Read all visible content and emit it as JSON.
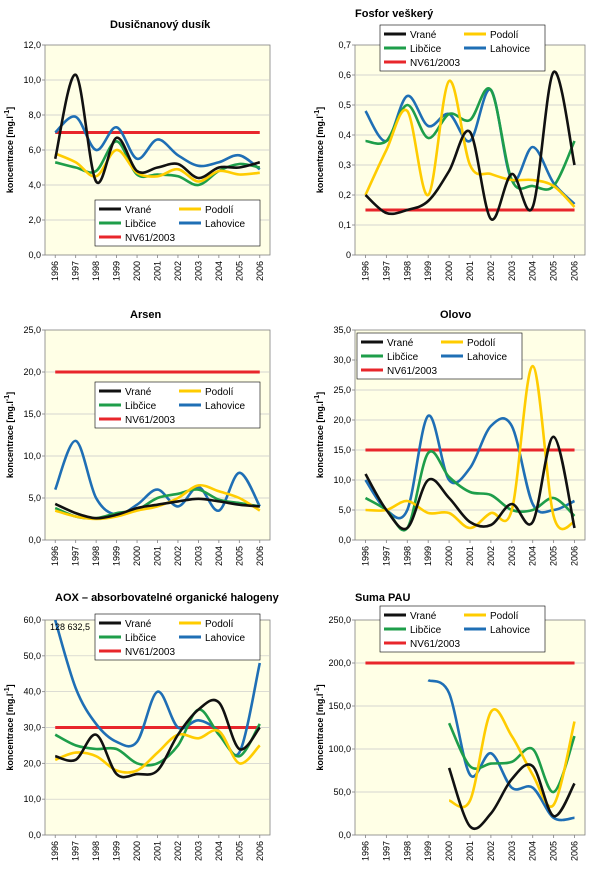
{
  "colors": {
    "Vrané": "#111111",
    "Podolí": "#FFCC00",
    "Libčice": "#1E9E4A",
    "Lahovice": "#1F6FB5",
    "NV61/2003": "#E8262B",
    "plot_background": "#FFFFE6",
    "grid": "#C8C8C8"
  },
  "chart_data": [
    {
      "type": "line",
      "title": "Dusičnanový dusík",
      "ylabel": "koncentrace [mg.l-1]",
      "ylim": [
        0,
        12
      ],
      "yticks": [
        "0,0",
        "2,0",
        "4,0",
        "6,0",
        "8,0",
        "10,0",
        "12,0"
      ],
      "x": [
        "1996",
        "1997",
        "1998",
        "1999",
        "2000",
        "2001",
        "2002",
        "2003",
        "2004",
        "2005",
        "2006"
      ],
      "grid": true,
      "legend": "bottom-center",
      "series": [
        {
          "name": "Vrané",
          "values": [
            5.5,
            10.3,
            4.2,
            6.7,
            4.8,
            5.0,
            5.2,
            4.4,
            5.0,
            5.0,
            5.3
          ]
        },
        {
          "name": "Podolí",
          "values": [
            5.8,
            5.3,
            4.5,
            6.0,
            4.7,
            4.5,
            4.9,
            4.2,
            4.8,
            4.6,
            4.7
          ]
        },
        {
          "name": "Libčice",
          "values": [
            5.3,
            5.0,
            4.8,
            6.5,
            4.6,
            4.6,
            4.5,
            4.0,
            4.8,
            5.2,
            5.0
          ]
        },
        {
          "name": "Lahovice",
          "values": [
            7.0,
            7.9,
            6.0,
            7.3,
            5.5,
            6.6,
            5.7,
            5.1,
            5.3,
            5.7,
            4.9
          ]
        },
        {
          "name": "NV61/2003",
          "values": [
            7.0,
            7.0,
            7.0,
            7.0,
            7.0,
            7.0,
            7.0,
            7.0,
            7.0,
            7.0,
            7.0
          ]
        }
      ]
    },
    {
      "type": "line",
      "title": "Fosfor veškerý",
      "ylabel": "koncentrace [mg.l-1]",
      "ylim": [
        0,
        0.7
      ],
      "yticks": [
        "0",
        "0,1",
        "0,2",
        "0,3",
        "0,4",
        "0,5",
        "0,6",
        "0,7"
      ],
      "x": [
        "1996",
        "1997",
        "1998",
        "1999",
        "2000",
        "2001",
        "2002",
        "2003",
        "2004",
        "2005",
        "2006"
      ],
      "grid": true,
      "legend": "top",
      "series": [
        {
          "name": "Vrané",
          "values": [
            0.2,
            0.14,
            0.15,
            0.18,
            0.28,
            0.41,
            0.12,
            0.27,
            0.16,
            0.61,
            0.3
          ]
        },
        {
          "name": "Podolí",
          "values": [
            0.2,
            0.35,
            0.48,
            0.2,
            0.58,
            0.3,
            0.27,
            0.25,
            0.25,
            0.23,
            0.16
          ]
        },
        {
          "name": "Libčice",
          "values": [
            0.38,
            0.38,
            0.5,
            0.39,
            0.47,
            0.45,
            0.55,
            0.25,
            0.23,
            0.23,
            0.38
          ]
        },
        {
          "name": "Lahovice",
          "values": [
            0.48,
            0.38,
            0.53,
            0.43,
            0.47,
            0.38,
            0.55,
            0.25,
            0.36,
            0.24,
            0.17
          ]
        },
        {
          "name": "NV61/2003",
          "values": [
            0.15,
            0.15,
            0.15,
            0.15,
            0.15,
            0.15,
            0.15,
            0.15,
            0.15,
            0.15,
            0.15
          ]
        }
      ]
    },
    {
      "type": "line",
      "title": "Arsen",
      "ylabel": "koncentrace [mg.l-1]",
      "ylim": [
        0,
        25
      ],
      "yticks": [
        "0,0",
        "5,0",
        "10,0",
        "15,0",
        "20,0",
        "25,0"
      ],
      "x": [
        "1996",
        "1997",
        "1998",
        "1999",
        "2000",
        "2001",
        "2002",
        "2003",
        "2004",
        "2005",
        "2006"
      ],
      "grid": true,
      "legend": "center",
      "series": [
        {
          "name": "Vrané",
          "values": [
            4.3,
            3.2,
            2.6,
            3.0,
            3.8,
            4.2,
            4.6,
            4.9,
            4.6,
            4.2,
            4.0
          ]
        },
        {
          "name": "Podolí",
          "values": [
            3.5,
            2.8,
            2.5,
            2.8,
            3.5,
            4.0,
            5.0,
            6.5,
            5.8,
            5.0,
            3.5
          ]
        },
        {
          "name": "Libčice",
          "values": [
            3.8,
            2.8,
            2.6,
            3.2,
            3.6,
            5.0,
            5.5,
            6.0,
            4.8,
            4.4,
            4.0
          ]
        },
        {
          "name": "Lahovice",
          "values": [
            6.0,
            11.8,
            5.0,
            3.0,
            4.2,
            6.0,
            4.0,
            6.3,
            3.5,
            8.0,
            4.0
          ]
        },
        {
          "name": "NV61/2003",
          "values": [
            20,
            20,
            20,
            20,
            20,
            20,
            20,
            20,
            20,
            20,
            20
          ]
        }
      ]
    },
    {
      "type": "line",
      "title": "Olovo",
      "ylabel": "koncentrace [mg.l-1]",
      "ylim": [
        0,
        35
      ],
      "yticks": [
        "0,0",
        "5,0",
        "10,0",
        "15,0",
        "20,0",
        "25,0",
        "30,0",
        "35,0"
      ],
      "x": [
        "1996",
        "1997",
        "1998",
        "1999",
        "2000",
        "2001",
        "2002",
        "2003",
        "2004",
        "2005",
        "2006"
      ],
      "grid": true,
      "legend": "top",
      "series": [
        {
          "name": "Vrané",
          "values": [
            11.0,
            5.0,
            2.0,
            10.0,
            7.0,
            3.0,
            2.5,
            6.0,
            3.0,
            17.2,
            2.0
          ]
        },
        {
          "name": "Podolí",
          "values": [
            5.0,
            5.0,
            6.5,
            4.5,
            4.5,
            2.0,
            4.5,
            5.0,
            29.0,
            4.0,
            3.0
          ]
        },
        {
          "name": "Libčice",
          "values": [
            7.0,
            5.0,
            2.0,
            14.5,
            10.5,
            8.0,
            7.5,
            5.0,
            5.0,
            7.0,
            4.0
          ]
        },
        {
          "name": "Lahovice",
          "values": [
            10.0,
            5.0,
            5.0,
            20.7,
            10.0,
            12.0,
            19.0,
            19.0,
            6.0,
            5.0,
            6.5
          ]
        },
        {
          "name": "NV61/2003",
          "values": [
            15,
            15,
            15,
            15,
            15,
            15,
            15,
            15,
            15,
            15,
            15
          ]
        }
      ]
    },
    {
      "type": "line",
      "title": "AOX – absorbovatelné organické halogeny",
      "ylabel": "koncentrace [mg.l-1]",
      "ylim": [
        0,
        60
      ],
      "yticks": [
        "0,0",
        "10,0",
        "20,0",
        "30,0",
        "40,0",
        "50,0",
        "60,0"
      ],
      "x": [
        "1996",
        "1997",
        "1998",
        "1999",
        "2000",
        "2001",
        "2002",
        "2003",
        "2004",
        "2005",
        "2006"
      ],
      "grid": true,
      "legend": "top-right",
      "annotation": "128  632,5",
      "series": [
        {
          "name": "Vrané",
          "values": [
            22,
            21,
            28,
            17,
            17,
            18,
            28,
            35,
            37,
            24,
            30
          ]
        },
        {
          "name": "Podolí",
          "values": [
            21,
            23,
            22,
            18,
            18,
            23,
            28,
            27,
            29,
            20,
            25
          ]
        },
        {
          "name": "Libčice",
          "values": [
            28,
            25,
            24,
            24,
            20,
            20,
            25,
            35,
            28,
            22,
            31
          ]
        },
        {
          "name": "Lahovice",
          "values": [
            60,
            41,
            31,
            26,
            26,
            40,
            30,
            32,
            29,
            23,
            48
          ]
        },
        {
          "name": "NV61/2003",
          "values": [
            30,
            30,
            30,
            30,
            30,
            30,
            30,
            30,
            30,
            30,
            30
          ]
        }
      ]
    },
    {
      "type": "line",
      "title": "Suma PAU",
      "ylabel": "koncentrace [mg.l-1]",
      "ylim": [
        0,
        250
      ],
      "yticks": [
        "0,0",
        "50,0",
        "100,0",
        "150,0",
        "200,0",
        "250,0"
      ],
      "x": [
        "1996",
        "1997",
        "1998",
        "1999",
        "2000",
        "2001",
        "2002",
        "2003",
        "2004",
        "2005",
        "2006"
      ],
      "grid": true,
      "legend": "top",
      "series": [
        {
          "name": "Vrané",
          "values": [
            null,
            null,
            null,
            null,
            78,
            10,
            25,
            65,
            80,
            22,
            60
          ]
        },
        {
          "name": "Podolí",
          "values": [
            null,
            null,
            null,
            null,
            40,
            40,
            143,
            115,
            70,
            35,
            132
          ]
        },
        {
          "name": "Libčice",
          "values": [
            null,
            null,
            null,
            null,
            130,
            80,
            83,
            85,
            100,
            50,
            115
          ]
        },
        {
          "name": "Lahovice",
          "values": [
            null,
            null,
            null,
            180,
            165,
            70,
            95,
            55,
            55,
            20,
            20
          ]
        },
        {
          "name": "NV61/2003",
          "values": [
            200,
            200,
            200,
            200,
            200,
            200,
            200,
            200,
            200,
            200,
            200
          ]
        }
      ]
    }
  ]
}
